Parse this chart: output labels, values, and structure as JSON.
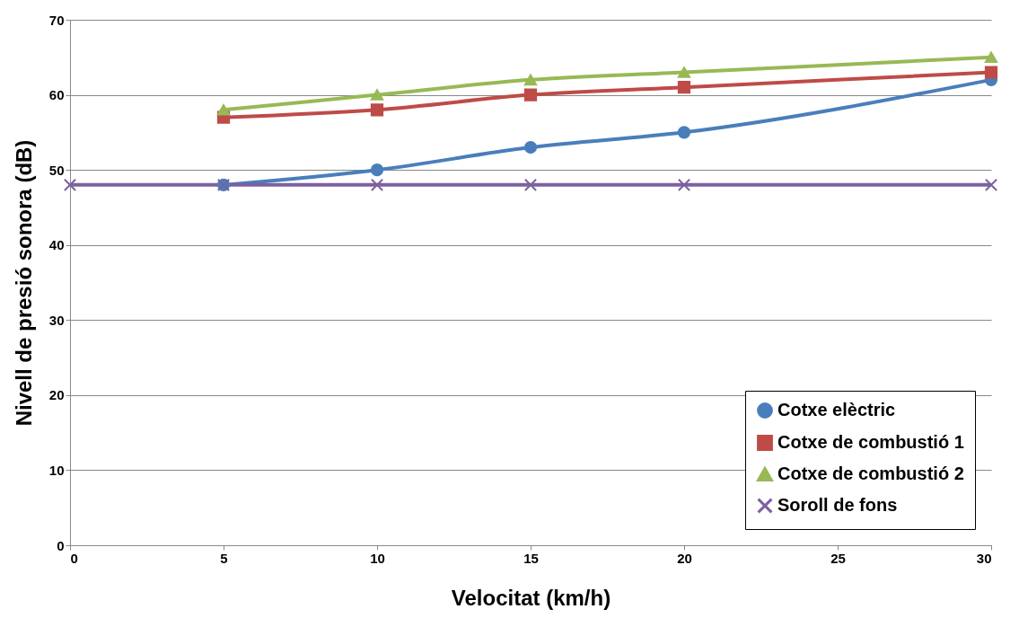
{
  "chart_data": {
    "type": "line",
    "xlabel": "Velocitat (km/h)",
    "ylabel": "Nivell de presió sonora (dB)",
    "xlim": [
      0,
      30
    ],
    "xticks": [
      0,
      5,
      10,
      15,
      20,
      25,
      30
    ],
    "ylim": [
      0,
      70
    ],
    "yticks": [
      0,
      10,
      20,
      30,
      40,
      50,
      60,
      70
    ],
    "grid": "y",
    "legend": "bottom right",
    "line_style": "solid",
    "series": [
      {
        "name": "Cotxe elèctric",
        "color": "#4a7ebb",
        "marker": "circle",
        "x": [
          5,
          10,
          15,
          20,
          30
        ],
        "values": [
          48,
          50,
          53,
          55,
          62
        ]
      },
      {
        "name": "Cotxe de combustió 1",
        "color": "#be4b48",
        "marker": "square",
        "x": [
          5,
          10,
          15,
          20,
          30
        ],
        "values": [
          57,
          58,
          60,
          61,
          63
        ]
      },
      {
        "name": "Cotxe de combustió 2",
        "color": "#98b954",
        "marker": "triangle",
        "x": [
          5,
          10,
          15,
          20,
          30
        ],
        "values": [
          58,
          60,
          62,
          63,
          65
        ]
      },
      {
        "name": "Soroll de fons",
        "color": "#7d60a0",
        "marker": "cross",
        "x": [
          0,
          5,
          10,
          15,
          20,
          30
        ],
        "values": [
          48,
          48,
          48,
          48,
          48,
          48
        ]
      }
    ]
  }
}
